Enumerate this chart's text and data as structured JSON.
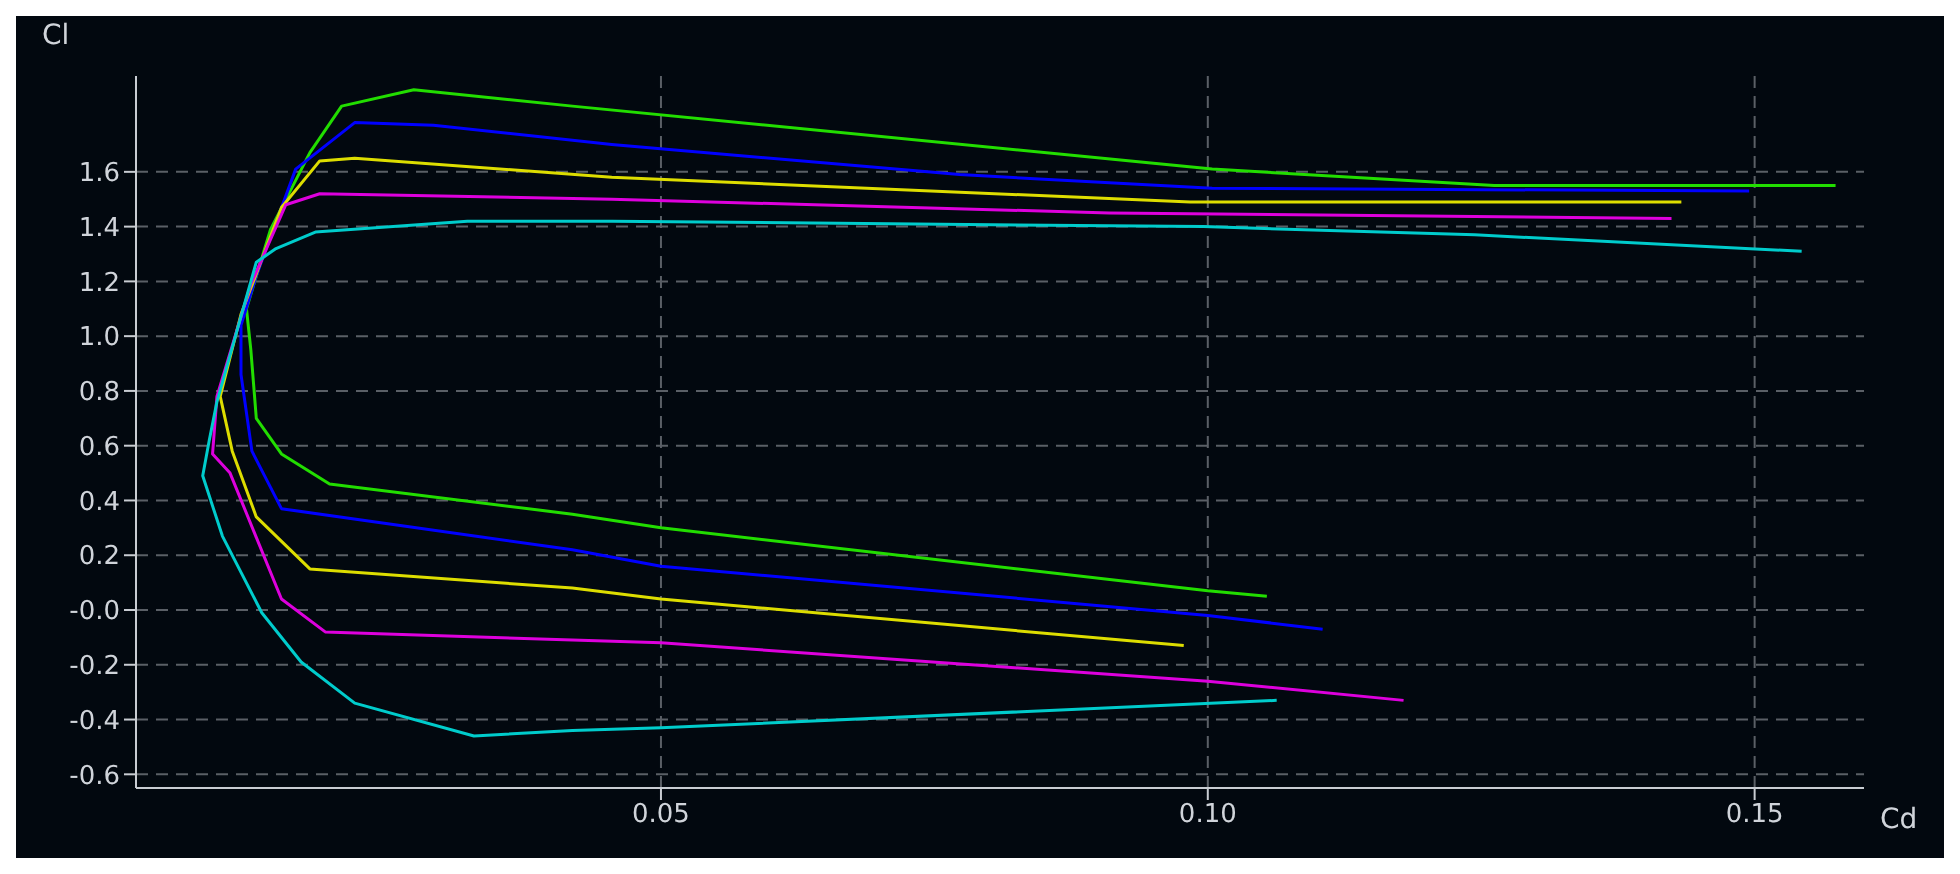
{
  "chart_data": {
    "type": "line",
    "xlabel": "Cd",
    "ylabel": "Cl",
    "xlim": [
      0.002,
      0.16
    ],
    "ylim": [
      -0.65,
      1.95
    ],
    "xticks": [
      0.05,
      {
        "value": 0.1,
        "label": "0.10"
      },
      0.15
    ],
    "yticks": [
      -0.6,
      -0.4,
      -0.2,
      {
        "value": 0,
        "label": "-0.0"
      },
      0.2,
      0.4,
      0.6,
      0.8,
      {
        "value": 1,
        "label": "1.0"
      },
      1.2,
      1.4,
      1.6
    ],
    "grid": true,
    "legend": false,
    "marker": "none",
    "line_style": "solid",
    "series": [
      {
        "color": "#22dd00",
        "x": [
          0.1054,
          0.1,
          0.05,
          0.0419,
          0.0197,
          0.0153,
          0.013,
          0.0125,
          0.0121,
          0.0143,
          0.0179,
          0.0208,
          0.0274,
          0.0419,
          0.1004,
          0.1262,
          0.1574
        ],
        "values": [
          0.05,
          0.07,
          0.3,
          0.35,
          0.46,
          0.57,
          0.7,
          0.95,
          1.1,
          1.39,
          1.67,
          1.84,
          1.9,
          1.84,
          1.61,
          1.55,
          1.55
        ]
      },
      {
        "color": "#0000ff",
        "x": [
          0.1105,
          0.1,
          0.05,
          0.0419,
          0.0153,
          0.0126,
          0.0116,
          0.0116,
          0.013,
          0.0166,
          0.022,
          0.0292,
          0.0455,
          0.0773,
          0.1004,
          0.1495
        ],
        "values": [
          -0.07,
          -0.02,
          0.16,
          0.22,
          0.37,
          0.58,
          0.86,
          1.04,
          1.22,
          1.61,
          1.78,
          1.77,
          1.7,
          1.59,
          1.54,
          1.53
        ]
      },
      {
        "color": "#dddd00",
        "x": [
          0.0978,
          0.05,
          0.0419,
          0.0179,
          0.013,
          0.0108,
          0.0097,
          0.0116,
          0.0153,
          0.0188,
          0.022,
          0.0455,
          0.0984,
          0.1433
        ],
        "values": [
          -0.13,
          0.04,
          0.08,
          0.15,
          0.34,
          0.58,
          0.78,
          1.08,
          1.47,
          1.64,
          1.65,
          1.58,
          1.49,
          1.49
        ]
      },
      {
        "color": "#dd00dd",
        "x": [
          0.1179,
          0.1,
          0.05,
          0.0419,
          0.0193,
          0.0153,
          0.0106,
          0.009,
          0.0094,
          0.0125,
          0.0157,
          0.0188,
          0.0455,
          0.091,
          0.1424
        ],
        "values": [
          -0.33,
          -0.26,
          -0.12,
          -0.11,
          -0.08,
          0.04,
          0.5,
          0.57,
          0.78,
          1.19,
          1.48,
          1.52,
          1.5,
          1.45,
          1.43
        ]
      },
      {
        "color": "#00cccc",
        "x": [
          0.1063,
          0.05,
          0.0419,
          0.0329,
          0.022,
          0.0171,
          0.0135,
          0.0099,
          0.0081,
          0.0087,
          0.0094,
          0.013,
          0.0148,
          0.0184,
          0.0323,
          0.0455,
          0.0996,
          0.1244,
          0.1543
        ],
        "values": [
          -0.33,
          -0.43,
          -0.44,
          -0.46,
          -0.34,
          -0.19,
          -0.01,
          0.27,
          0.49,
          0.62,
          0.76,
          1.27,
          1.32,
          1.38,
          1.42,
          1.42,
          1.4,
          1.37,
          1.31
        ]
      }
    ]
  }
}
